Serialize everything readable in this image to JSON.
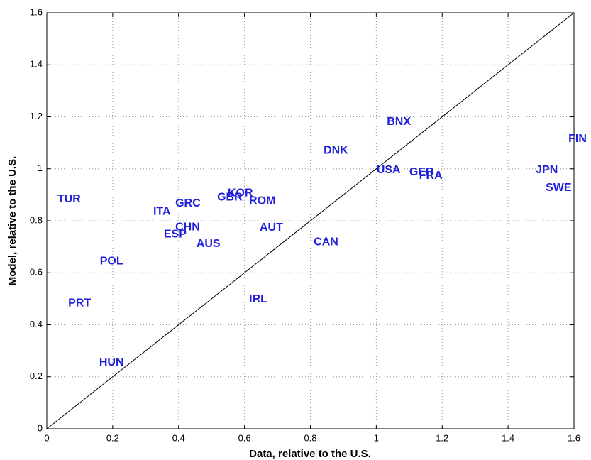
{
  "chart_data": {
    "type": "scatter",
    "xlabel": "Data, relative to the U.S.",
    "ylabel": "Model, relative to the U.S.",
    "labels": [
      "TUR",
      "PRT",
      "POL",
      "HUN",
      "ITA",
      "GRC",
      "CHN",
      "ESP",
      "AUS",
      "GBR",
      "KOR",
      "ROM",
      "AUT",
      "IRL",
      "CAN",
      "DNK",
      "BNX",
      "USA",
      "GER",
      "FRA",
      "JPN",
      "SWE",
      "FIN"
    ],
    "x": [
      0.032,
      0.065,
      0.161,
      0.159,
      0.323,
      0.39,
      0.39,
      0.355,
      0.454,
      0.517,
      0.549,
      0.614,
      0.646,
      0.614,
      0.81,
      0.84,
      1.032,
      1.001,
      1.1,
      1.13,
      1.484,
      1.514,
      1.583
    ],
    "values": [
      0.882,
      0.483,
      0.644,
      0.254,
      0.835,
      0.866,
      0.775,
      0.748,
      0.71,
      0.89,
      0.906,
      0.876,
      0.773,
      0.497,
      0.718,
      1.07,
      1.18,
      0.994,
      0.986,
      0.972,
      0.994,
      0.926,
      1.114
    ],
    "color": "#2020d8",
    "xlim": [
      0,
      1.6
    ],
    "ylim": [
      0,
      1.6
    ],
    "xticks": [
      0,
      0.2,
      0.4,
      0.6,
      0.8,
      1,
      1.2,
      1.4,
      1.6
    ],
    "yticks": [
      0,
      0.2,
      0.4,
      0.6,
      0.8,
      1,
      1.2,
      1.4,
      1.6
    ],
    "grid": true,
    "diagonal": true
  }
}
